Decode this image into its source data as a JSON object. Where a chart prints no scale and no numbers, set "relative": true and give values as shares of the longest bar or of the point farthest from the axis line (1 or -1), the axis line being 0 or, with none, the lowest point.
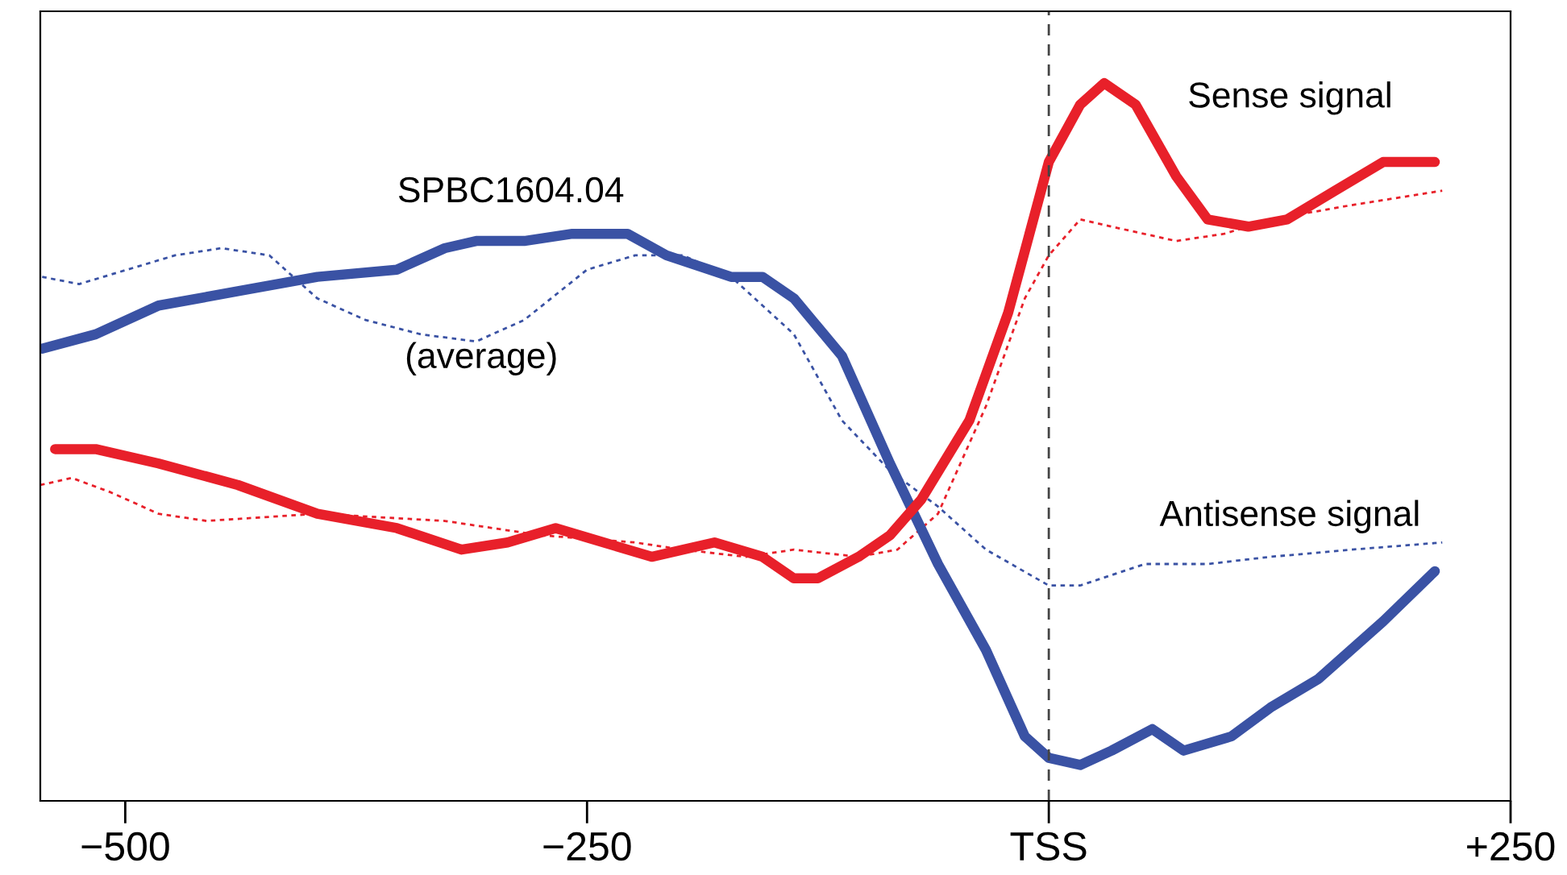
{
  "chart_data": {
    "type": "line",
    "relative": true,
    "xlim": [
      -546,
      250
    ],
    "xticks": [
      {
        "value": -500,
        "label": "−500"
      },
      {
        "value": -250,
        "label": "−250"
      },
      {
        "value": 0,
        "label": "TSS"
      },
      {
        "value": 250,
        "label": "+250"
      }
    ],
    "grid": false,
    "legend": false,
    "marker": "none",
    "ref_lines": [
      {
        "axis": "x",
        "value": 0,
        "label": null,
        "color": "#444444",
        "line_style": "dashed"
      }
    ],
    "series": [
      {
        "color": "#3a52a4",
        "line_style": "dotted",
        "x": [
          -545,
          -525,
          -499,
          -473,
          -448,
          -422,
          -396,
          -370,
          -340,
          -310,
          -284,
          -250,
          -224,
          -198,
          -172,
          -138,
          -112,
          -86,
          -60,
          -34,
          0,
          17,
          52,
          86,
          120,
          164,
          213
        ],
        "values": [
          0.73,
          0.72,
          0.74,
          0.76,
          0.77,
          0.76,
          0.7,
          0.67,
          0.65,
          0.64,
          0.67,
          0.74,
          0.76,
          0.76,
          0.73,
          0.65,
          0.53,
          0.46,
          0.41,
          0.35,
          0.3,
          0.3,
          0.33,
          0.33,
          0.34,
          0.35,
          0.36
        ]
      },
      {
        "color": "#e8202a",
        "line_style": "dotted",
        "x": [
          -546,
          -529,
          -508,
          -482,
          -456,
          -396,
          -327,
          -275,
          -224,
          -198,
          -164,
          -138,
          -103,
          -82,
          -60,
          -34,
          -13,
          0,
          17,
          34,
          69,
          95,
          120,
          164,
          213
        ],
        "values": [
          0.44,
          0.45,
          0.43,
          0.4,
          0.39,
          0.4,
          0.39,
          0.37,
          0.36,
          0.35,
          0.34,
          0.35,
          0.34,
          0.35,
          0.4,
          0.55,
          0.7,
          0.76,
          0.81,
          0.8,
          0.78,
          0.79,
          0.81,
          0.83,
          0.85
        ]
      },
      {
        "color": "#3a52a4",
        "line_style": "solid",
        "x": [
          -545,
          -516,
          -482,
          -439,
          -396,
          -353,
          -327,
          -310,
          -284,
          -258,
          -228,
          -207,
          -172,
          -155,
          -138,
          -112,
          -86,
          -60,
          -34,
          -13,
          0,
          17,
          34,
          56,
          73,
          99,
          120,
          146,
          181,
          209
        ],
        "values": [
          0.63,
          0.65,
          0.69,
          0.71,
          0.73,
          0.74,
          0.77,
          0.78,
          0.78,
          0.79,
          0.79,
          0.76,
          0.73,
          0.73,
          0.7,
          0.62,
          0.47,
          0.33,
          0.21,
          0.09,
          0.06,
          0.05,
          0.07,
          0.1,
          0.07,
          0.09,
          0.13,
          0.17,
          0.25,
          0.32
        ]
      },
      {
        "color": "#e8202a",
        "line_style": "solid",
        "x": [
          -538,
          -516,
          -482,
          -439,
          -396,
          -353,
          -318,
          -293,
          -267,
          -241,
          -215,
          -181,
          -155,
          -138,
          -125,
          -103,
          -86,
          -69,
          -43,
          -22,
          0,
          17,
          30,
          47,
          69,
          86,
          108,
          129,
          155,
          181,
          194,
          209
        ],
        "values": [
          0.49,
          0.49,
          0.47,
          0.44,
          0.4,
          0.38,
          0.35,
          0.36,
          0.38,
          0.36,
          0.34,
          0.36,
          0.34,
          0.31,
          0.31,
          0.34,
          0.37,
          0.42,
          0.53,
          0.68,
          0.89,
          0.97,
          1.0,
          0.97,
          0.87,
          0.81,
          0.8,
          0.81,
          0.85,
          0.89,
          0.89,
          0.89
        ]
      }
    ],
    "annotations": [
      "SPBC1604.04",
      "(average)",
      "Sense signal",
      "Antisense signal"
    ]
  }
}
